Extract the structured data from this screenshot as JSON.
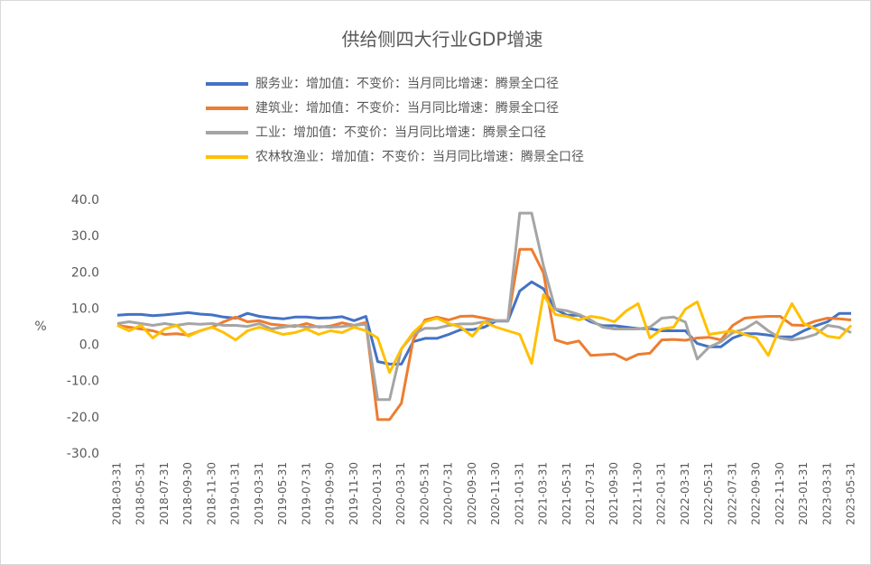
{
  "chart_data": {
    "type": "line",
    "title": "供给侧四大行业GDP增速",
    "y_label": "%",
    "categories": [
      "2018-03-31",
      null,
      "2018-05-31",
      null,
      "2018-07-31",
      null,
      "2018-09-30",
      null,
      "2018-11-30",
      null,
      "2019-01-31",
      null,
      "2019-03-31",
      null,
      "2019-05-31",
      null,
      "2019-07-31",
      null,
      "2019-09-30",
      null,
      "2019-11-30",
      null,
      "2020-01-31",
      null,
      "2020-03-31",
      null,
      "2020-05-31",
      null,
      "2020-07-31",
      null,
      "2020-09-30",
      null,
      "2020-11-30",
      null,
      "2021-01-31",
      null,
      "2021-03-31",
      null,
      "2021-05-31",
      null,
      "2021-07-31",
      null,
      "2021-09-30",
      null,
      "2021-11-30",
      null,
      "2022-01-31",
      null,
      "2022-03-31",
      null,
      "2022-05-31",
      null,
      "2022-07-31",
      null,
      "2022-09-30",
      null,
      "2022-11-30",
      null,
      "2023-01-31",
      null,
      "2023-03-31",
      null,
      "2023-05-31"
    ],
    "series": [
      {
        "name": "服务业：增加值：不变价：当月同比增速：腾景全口径",
        "color": "#4472c4",
        "values": [
          8.3,
          8.5,
          8.5,
          8.2,
          8.4,
          8.7,
          9.0,
          8.6,
          8.4,
          7.8,
          7.5,
          8.8,
          8.0,
          7.6,
          7.3,
          7.8,
          7.8,
          7.5,
          7.6,
          7.9,
          6.8,
          8.0,
          -4.5,
          -5.2,
          -5.2,
          1.0,
          1.9,
          1.9,
          3.0,
          4.3,
          4.3,
          5.0,
          6.7,
          6.7,
          15.0,
          17.5,
          15.6,
          10.0,
          8.3,
          8.3,
          6.5,
          5.4,
          5.4,
          5.0,
          4.6,
          4.6,
          4.0,
          4.0,
          4.0,
          0.5,
          -0.4,
          -0.4,
          2.0,
          3.2,
          3.2,
          2.8,
          2.3,
          2.3,
          4.0,
          5.4,
          6.5,
          8.8,
          8.8
        ]
      },
      {
        "name": "建筑业：增加值：不变价：当月同比增速：腾景全口径",
        "color": "#ed7d31",
        "values": [
          5.5,
          5.0,
          4.5,
          4.0,
          3.0,
          3.2,
          2.8,
          4.0,
          5.0,
          6.5,
          7.8,
          6.5,
          6.8,
          5.8,
          5.5,
          5.2,
          6.0,
          5.0,
          5.3,
          6.2,
          5.5,
          6.3,
          -20.5,
          -20.5,
          -16.0,
          1.5,
          7.0,
          7.8,
          7.0,
          8.0,
          8.1,
          7.5,
          6.8,
          6.8,
          26.5,
          26.5,
          20.0,
          1.5,
          0.5,
          1.2,
          -2.8,
          -2.6,
          -2.4,
          -4.0,
          -2.5,
          -2.2,
          1.5,
          1.6,
          1.4,
          2.0,
          2.2,
          1.5,
          5.5,
          7.5,
          7.8,
          8.0,
          8.0,
          5.6,
          5.5,
          6.7,
          7.5,
          7.3,
          7.0
        ]
      },
      {
        "name": "工业：增加值：不变价：当月同比增速：腾景全口径",
        "color": "#a5a5a5",
        "values": [
          6.0,
          6.5,
          6.0,
          5.5,
          6.0,
          5.5,
          6.0,
          5.8,
          6.0,
          5.5,
          5.5,
          5.2,
          6.0,
          4.5,
          5.0,
          5.5,
          5.0,
          5.2,
          5.0,
          5.2,
          5.5,
          5.8,
          -15.0,
          -15.0,
          -1.0,
          3.0,
          4.7,
          4.7,
          5.5,
          5.9,
          5.9,
          6.5,
          6.8,
          6.8,
          36.5,
          36.5,
          22.0,
          10.0,
          9.5,
          8.5,
          7.0,
          5.0,
          4.5,
          4.5,
          4.5,
          5.0,
          7.5,
          7.8,
          6.4,
          -3.8,
          -0.5,
          1.0,
          3.5,
          4.5,
          6.5,
          4.0,
          2.0,
          1.5,
          2.0,
          3.0,
          5.5,
          5.0,
          3.5
        ]
      },
      {
        "name": "农林牧渔业：增加值：不变价：当月同比增速：腾景全口径",
        "color": "#ffc000",
        "values": [
          5.5,
          4.0,
          5.5,
          2.0,
          4.5,
          5.5,
          2.5,
          4.0,
          5.0,
          3.5,
          1.5,
          4.0,
          5.0,
          4.0,
          3.0,
          3.5,
          4.5,
          3.0,
          4.0,
          3.5,
          5.0,
          4.0,
          2.0,
          -7.5,
          -1.0,
          3.5,
          6.5,
          7.5,
          6.0,
          5.0,
          2.5,
          6.5,
          5.0,
          4.0,
          3.0,
          -5.0,
          14.0,
          8.5,
          8.0,
          7.0,
          8.0,
          7.5,
          6.5,
          9.5,
          11.5,
          2.0,
          4.5,
          5.0,
          10.0,
          12.0,
          3.0,
          3.5,
          4.0,
          3.0,
          2.0,
          -2.8,
          5.0,
          11.5,
          6.0,
          4.5,
          2.5,
          2.0,
          5.5
        ]
      }
    ],
    "ylim": [
      -30,
      40
    ],
    "yticks": [
      {
        "value": -30,
        "label": "-30.0"
      },
      {
        "value": -20,
        "label": "-20.0"
      },
      {
        "value": -10,
        "label": "-10.0"
      },
      {
        "value": 0,
        "label": "0.0"
      },
      {
        "value": 10,
        "label": "10.0"
      },
      {
        "value": 20,
        "label": "20.0"
      },
      {
        "value": 30,
        "label": "30.0"
      },
      {
        "value": 40,
        "label": "40.0"
      }
    ],
    "grid": false
  }
}
